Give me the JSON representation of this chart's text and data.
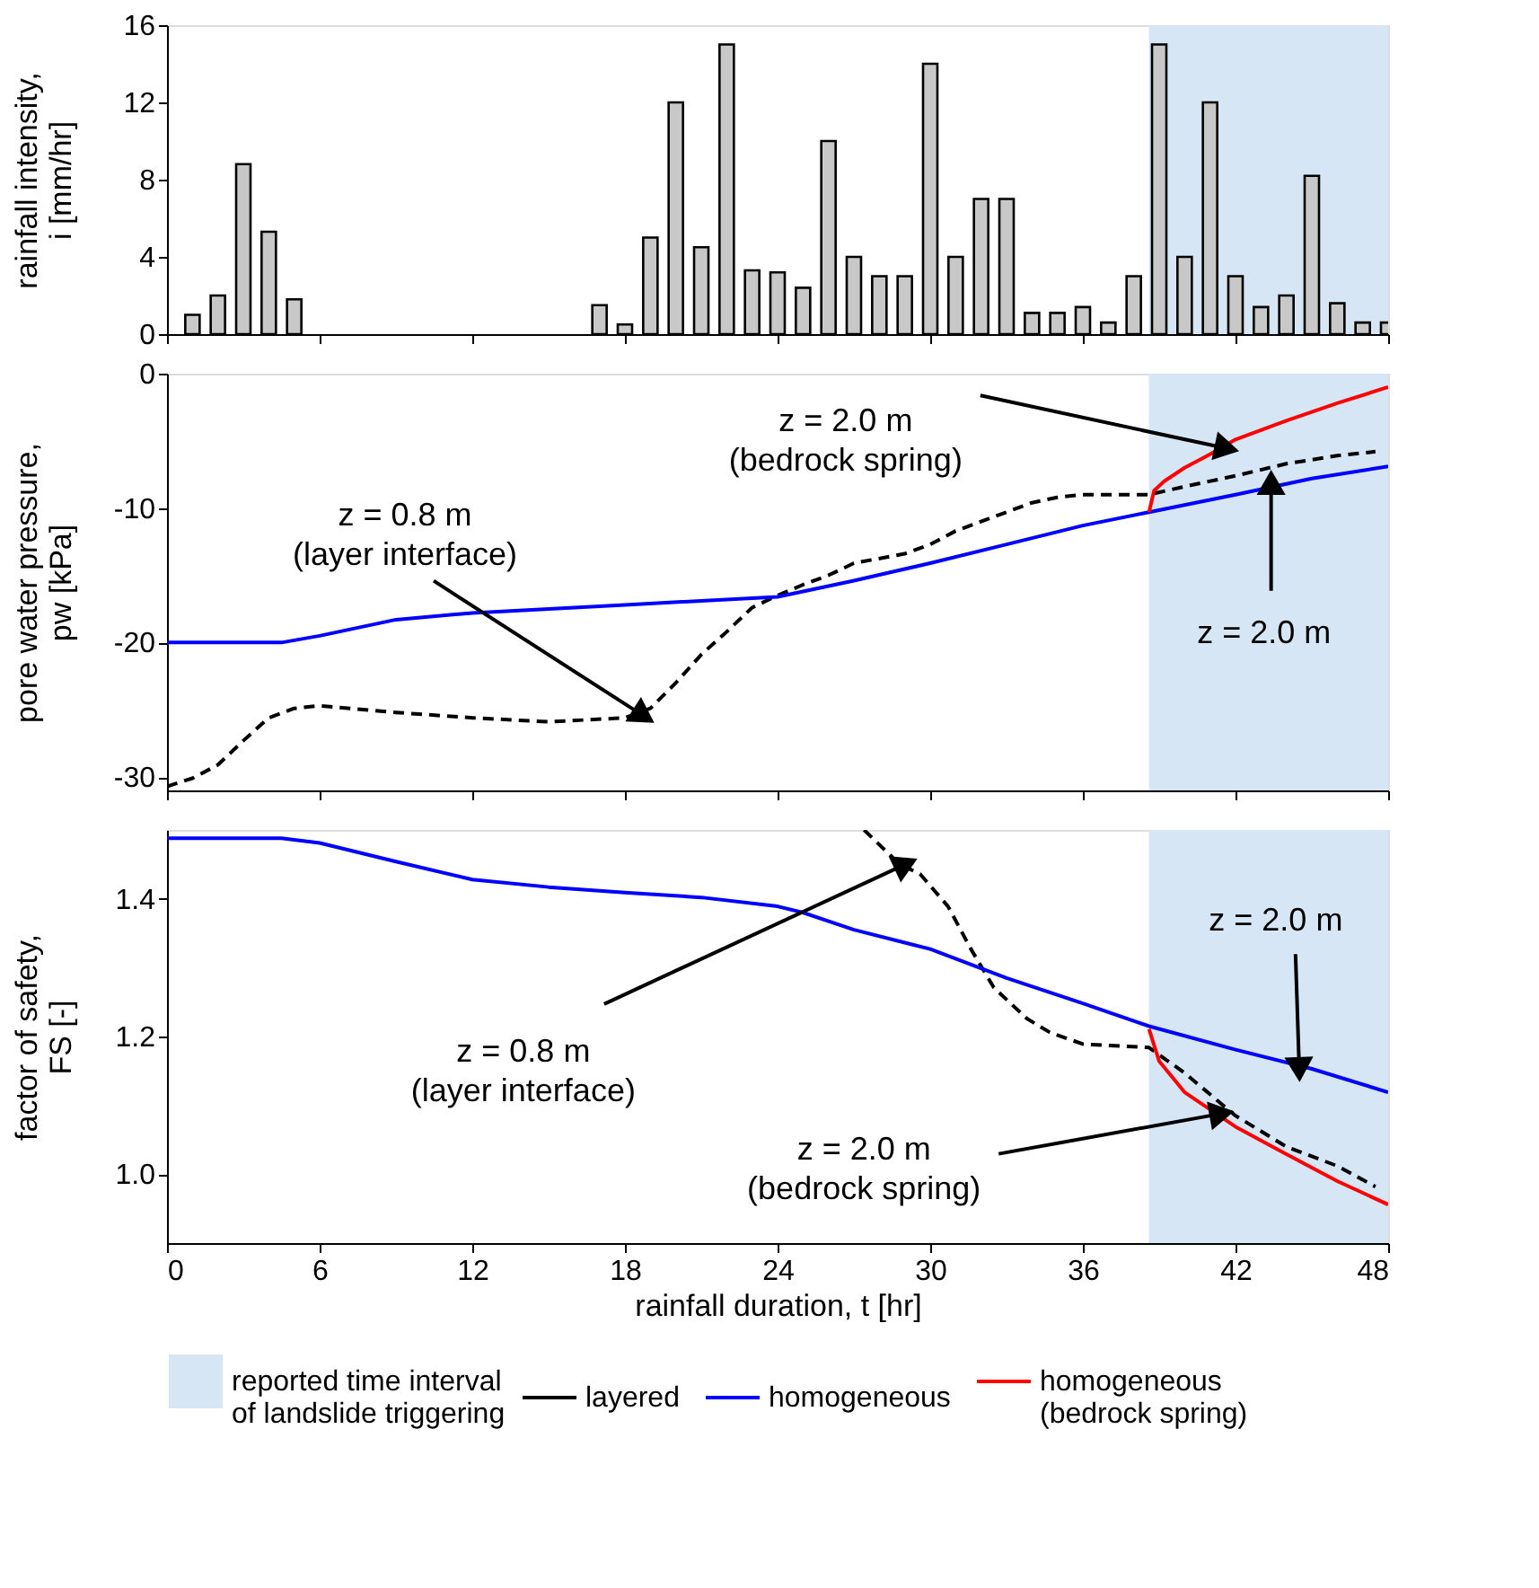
{
  "chart_data": [
    {
      "type": "bar",
      "ylabel": "rainfall intensity,\ni [mm/hr]",
      "color": "#c8c8c8",
      "x": [
        1,
        2,
        3,
        4,
        5,
        6,
        7,
        8,
        9,
        10,
        11,
        12,
        13,
        14,
        15,
        16,
        17,
        18,
        19,
        20,
        21,
        22,
        23,
        24,
        25,
        26,
        27,
        28,
        29,
        30,
        31,
        32,
        33,
        34,
        35,
        36,
        37,
        38,
        39,
        40,
        41,
        42,
        43,
        44,
        45,
        46,
        47,
        48
      ],
      "values": [
        1,
        2,
        8.8,
        5.3,
        1.8,
        null,
        null,
        null,
        null,
        null,
        null,
        null,
        null,
        null,
        null,
        null,
        1.5,
        0.5,
        5,
        12,
        4.5,
        15,
        3.3,
        3.2,
        2.4,
        10,
        4,
        3,
        3,
        14,
        4,
        7,
        7,
        1.1,
        1.1,
        1.4,
        0.6,
        3,
        15,
        4,
        12,
        3,
        1.4,
        2,
        8.2,
        1.6,
        0.6,
        0.6
      ],
      "xlim": [
        0,
        48
      ],
      "xticks": [
        0,
        6,
        12,
        18,
        24,
        30,
        36,
        42,
        48
      ],
      "ylim": [
        0,
        16
      ],
      "yticks": [
        0,
        4,
        8,
        12,
        16
      ],
      "tick_labels": "y",
      "bands": [
        {
          "axis": "x",
          "from": 38.6,
          "to": 48,
          "color": "#d6e6f5"
        }
      ]
    },
    {
      "type": "line",
      "ylabel": "pore water pressure,\npw [kPa]",
      "xlim": [
        0,
        48
      ],
      "xticks": [
        0,
        6,
        12,
        18,
        24,
        30,
        36,
        42,
        48
      ],
      "ylim": [
        -31,
        0
      ],
      "yticks": [
        0,
        -10,
        -20,
        -30
      ],
      "tick_labels": "y",
      "series": [
        {
          "color": "#000000",
          "line_style": "dashed",
          "x": [
            0,
            1,
            2,
            3,
            4,
            5,
            6,
            9,
            12,
            15,
            18,
            19,
            20,
            21,
            22,
            23,
            24,
            25,
            26,
            27,
            29,
            30,
            31,
            33,
            34,
            35,
            36,
            38.6,
            40,
            42,
            44,
            46,
            47.5
          ],
          "values": [
            -30.7,
            -30.1,
            -29.1,
            -27.3,
            -25.6,
            -24.9,
            -24.7,
            -25.2,
            -25.6,
            -25.9,
            -25.6,
            -24.9,
            -23,
            -20.9,
            -19.2,
            -17.4,
            -16.5,
            -15.7,
            -15,
            -14.1,
            -13.4,
            -12.7,
            -11.7,
            -10.3,
            -9.6,
            -9.2,
            -9,
            -9,
            -8.4,
            -7.6,
            -6.7,
            -6.1,
            -5.8
          ]
        },
        {
          "color": "#0000ff",
          "line_style": "solid",
          "x": [
            0,
            4.5,
            6,
            9,
            12,
            18,
            24,
            27,
            30,
            33,
            36,
            38.6,
            42,
            45,
            48
          ],
          "values": [
            -20,
            -20,
            -19.5,
            -18.3,
            -17.8,
            -17.2,
            -16.6,
            -15.4,
            -14.1,
            -12.7,
            -11.3,
            -10.3,
            -9,
            -7.8,
            -6.9
          ]
        },
        {
          "color": "#ff0000",
          "line_style": "solid",
          "x": [
            38.6,
            38.8,
            39.2,
            40,
            41,
            42,
            44,
            46,
            48
          ],
          "values": [
            -10.3,
            -8.7,
            -8,
            -7,
            -6,
            -4.9,
            -3.5,
            -2.2,
            -1
          ]
        }
      ],
      "bands": [
        {
          "axis": "x",
          "from": 38.6,
          "to": 48,
          "color": "#d6e6f5"
        }
      ],
      "annotations": [
        {
          "text": "z = 0.8 m\n(layer interface)",
          "x": 18.6,
          "y": -25.3
        },
        {
          "text": "z = 2.0 m\n(bedrock spring)",
          "x": 41.5,
          "y": -5.5
        },
        {
          "text": "z = 2.0 m",
          "x": 43.4,
          "y": -8.4
        }
      ]
    },
    {
      "type": "line",
      "xlabel": "rainfall duration, t [hr]",
      "ylabel": "factor of safety,\nFS [-]",
      "xlim": [
        0,
        48
      ],
      "xticks": [
        0,
        6,
        12,
        18,
        24,
        30,
        36,
        42,
        48
      ],
      "ylim": [
        0.9,
        1.5
      ],
      "yticks": [
        {
          "value": 1,
          "label": "1.0"
        },
        1.2,
        1.4
      ],
      "legend": "bottom",
      "series": [
        {
          "name": "layered",
          "color": "#000000",
          "line_style": "dashed",
          "x": [
            27.4,
            28.8,
            29.6,
            30.7,
            31.6,
            32.5,
            33.8,
            34.7,
            36,
            38.6,
            40,
            42,
            44,
            46,
            47.5
          ],
          "values": [
            1.5,
            1.45,
            1.436,
            1.389,
            1.327,
            1.271,
            1.226,
            1.206,
            1.189,
            1.184,
            1.147,
            1.085,
            1.04,
            1.012,
            0.982
          ]
        },
        {
          "name": "homogeneous",
          "color": "#0000ff",
          "line_style": "solid",
          "x": [
            0,
            4.5,
            6,
            9,
            12,
            15,
            18,
            21,
            24,
            25,
            27,
            30,
            33,
            36,
            38.6,
            42,
            45,
            48
          ],
          "values": [
            1.488,
            1.488,
            1.481,
            1.454,
            1.428,
            1.417,
            1.409,
            1.402,
            1.389,
            1.38,
            1.355,
            1.327,
            1.285,
            1.248,
            1.215,
            1.181,
            1.153,
            1.119
          ]
        },
        {
          "name": "homogeneous\n(bedrock spring)",
          "color": "#ff0000",
          "line_style": "solid",
          "x": [
            38.6,
            39,
            40,
            42,
            44,
            46,
            48
          ],
          "values": [
            1.211,
            1.164,
            1.119,
            1.069,
            1.029,
            0.99,
            0.956
          ]
        }
      ],
      "bands": [
        {
          "axis": "x",
          "from": 38.6,
          "to": 48,
          "color": "#d6e6f5",
          "label": "reported time interval\nof landslide triggering"
        }
      ],
      "annotations": [
        {
          "text": "z = 0.8 m\n(layer interface)",
          "x": 28.9,
          "y": 1.448
        },
        {
          "text": "z = 2.0 m\n(bedrock spring)",
          "x": 41.3,
          "y": 1.087
        },
        {
          "text": "z = 2.0 m",
          "x": 44.5,
          "y": 1.158
        }
      ]
    }
  ]
}
